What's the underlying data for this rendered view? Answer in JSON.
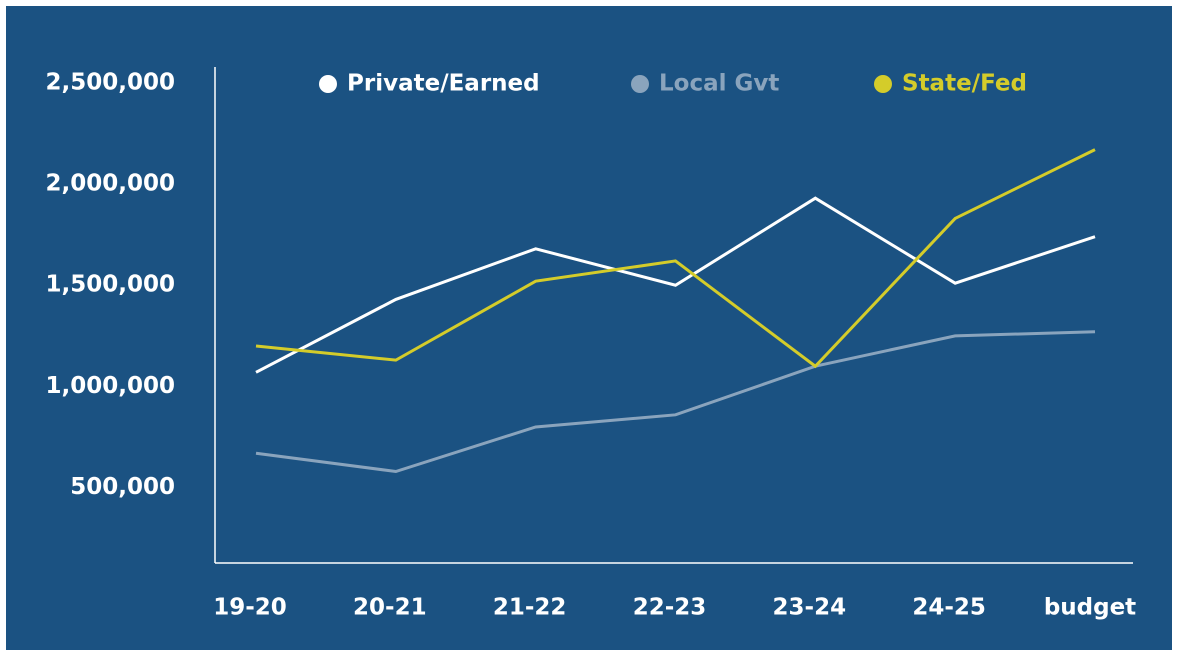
{
  "chart_data": {
    "type": "line",
    "categories": [
      "19-20",
      "20-21",
      "21-22",
      "22-23",
      "23-24",
      "24-25",
      "budget"
    ],
    "series": [
      {
        "name": "Private/Earned",
        "color": "#ffffff",
        "values": [
          1070000,
          1430000,
          1680000,
          1500000,
          1930000,
          1510000,
          1740000
        ]
      },
      {
        "name": "Local Gvt",
        "color": "#8aa4bd",
        "values": [
          670000,
          580000,
          800000,
          860000,
          1100000,
          1250000,
          1270000
        ]
      },
      {
        "name": "State/Fed",
        "color": "#d4cc2a",
        "values": [
          1200000,
          1130000,
          1520000,
          1620000,
          1100000,
          1830000,
          2170000
        ]
      }
    ],
    "ylim": [
      128000,
      2578000
    ],
    "yticks": [
      {
        "value": 500000,
        "label": "500,000"
      },
      {
        "value": 1000000,
        "label": "1,000,000"
      },
      {
        "value": 1500000,
        "label": "1,500,000"
      },
      {
        "value": 2000000,
        "label": "2,000,000"
      },
      {
        "value": 2500000,
        "label": "2,500,000"
      }
    ],
    "legend": "top"
  }
}
